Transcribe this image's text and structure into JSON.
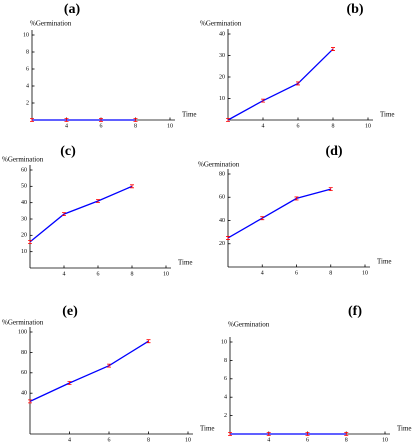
{
  "chart_data": [
    {
      "type": "line",
      "title": "(a)",
      "y_label": "%Germination",
      "x_label": "Time",
      "x": [
        2,
        4,
        6,
        8
      ],
      "series": [
        {
          "color": "#0000ff",
          "marker_color": "#ff0000",
          "values": [
            0,
            0,
            0,
            0
          ]
        }
      ],
      "xlim": [
        2,
        10
      ],
      "ylim": [
        0,
        10
      ],
      "xticks": [
        4,
        6,
        8,
        10
      ],
      "yticks": [
        2,
        4,
        6,
        8,
        10
      ]
    },
    {
      "type": "line",
      "title": "(b)",
      "y_label": "%Germination",
      "x_label": "Time",
      "x": [
        2,
        4,
        6,
        8
      ],
      "series": [
        {
          "color": "#0000ff",
          "marker_color": "#ff0000",
          "values": [
            0,
            9,
            17,
            33
          ]
        }
      ],
      "xlim": [
        2,
        10
      ],
      "ylim": [
        0,
        40
      ],
      "xticks": [
        4,
        6,
        8,
        10
      ],
      "yticks": [
        10,
        20,
        30,
        40
      ]
    },
    {
      "type": "line",
      "title": "(c)",
      "y_label": "%Germination",
      "x_label": "Time",
      "x": [
        2,
        4,
        6,
        8
      ],
      "series": [
        {
          "color": "#0000ff",
          "marker_color": "#ff0000",
          "values": [
            16,
            33,
            41,
            50
          ]
        }
      ],
      "xlim": [
        2,
        10
      ],
      "ylim": [
        0,
        60
      ],
      "xticks": [
        4,
        6,
        8,
        10
      ],
      "yticks": [
        10,
        20,
        30,
        40,
        50,
        60
      ]
    },
    {
      "type": "line",
      "title": "(d)",
      "y_label": "%Germination",
      "x_label": "Time",
      "x": [
        2,
        4,
        6,
        8
      ],
      "series": [
        {
          "color": "#0000ff",
          "marker_color": "#ff0000",
          "values": [
            25,
            42,
            59,
            67
          ]
        }
      ],
      "xlim": [
        2,
        10
      ],
      "ylim": [
        0,
        80
      ],
      "xticks": [
        4,
        6,
        8,
        10
      ],
      "yticks": [
        20,
        40,
        60,
        80
      ]
    },
    {
      "type": "line",
      "title": "(e)",
      "y_label": "%Germination",
      "x_label": "Time",
      "x": [
        2,
        4,
        6,
        8
      ],
      "series": [
        {
          "color": "#0000ff",
          "marker_color": "#ff0000",
          "values": [
            32,
            50,
            67,
            91
          ]
        }
      ],
      "xlim": [
        2,
        10
      ],
      "ylim": [
        0,
        100
      ],
      "xticks": [
        4,
        6,
        8,
        10
      ],
      "yticks": [
        40,
        60,
        80,
        100
      ]
    },
    {
      "type": "line",
      "title": "(f)",
      "y_label": "%Germination",
      "x_label": "Time",
      "x": [
        2,
        4,
        6,
        8
      ],
      "series": [
        {
          "color": "#0000ff",
          "marker_color": "#ff0000",
          "values": [
            0,
            0,
            0,
            0
          ]
        }
      ],
      "xlim": [
        2,
        10
      ],
      "ylim": [
        0,
        10
      ],
      "xticks": [
        4,
        6,
        8,
        10
      ],
      "yticks": [
        2,
        4,
        6,
        8,
        10
      ]
    }
  ]
}
